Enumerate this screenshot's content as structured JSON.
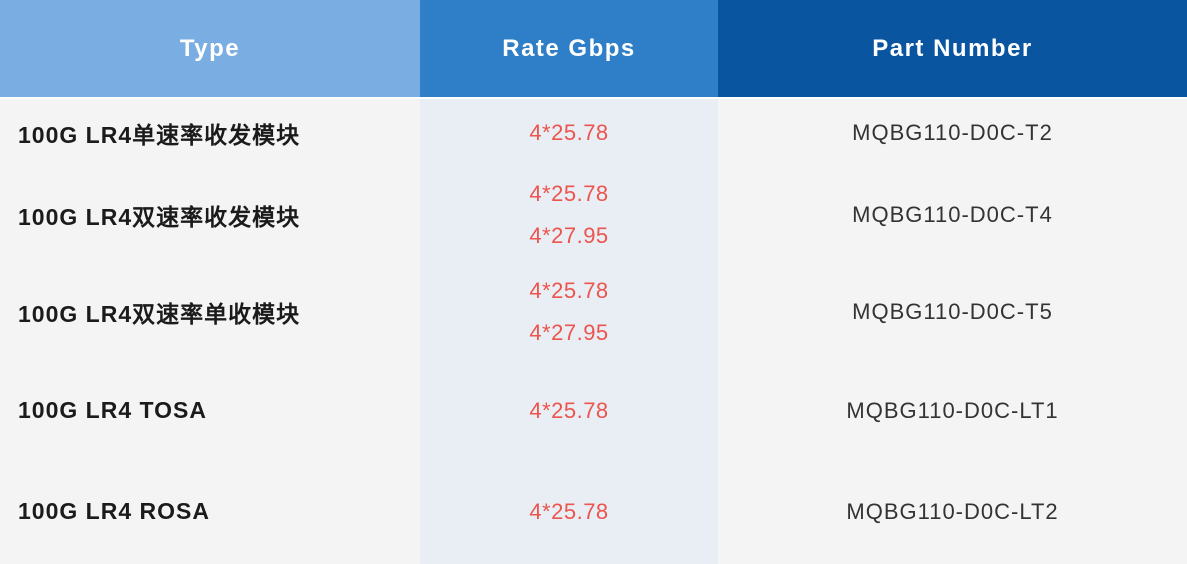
{
  "table": {
    "columns": [
      {
        "label": "Type",
        "header_bg": "#7aade2",
        "body_bg": "#f4f4f5",
        "align": "left"
      },
      {
        "label": "Rate Gbps",
        "header_bg": "#2e7fc7",
        "body_bg": "#e9eef5",
        "align": "center"
      },
      {
        "label": "Part Number",
        "header_bg": "#0a55a0",
        "body_bg": "#f4f4f5",
        "align": "center"
      }
    ],
    "rows": [
      {
        "type": "100G LR4单速率收发模块",
        "rates": [
          "4*25.78"
        ],
        "part_number": "MQBG110-D0C-T2"
      },
      {
        "type": "100G LR4双速率收发模块",
        "rates": [
          "4*25.78",
          "4*27.95"
        ],
        "part_number": "MQBG110-D0C-T4"
      },
      {
        "type": "100G LR4双速率单收模块",
        "rates": [
          "4*25.78",
          "4*27.95"
        ],
        "part_number": "MQBG110-D0C-T5"
      },
      {
        "type": "100G LR4 TOSA",
        "rates": [
          "4*25.78"
        ],
        "part_number": "MQBG110-D0C-LT1"
      },
      {
        "type": "100G LR4 ROSA",
        "rates": [
          "4*25.78"
        ],
        "part_number": "MQBG110-D0C-LT2"
      }
    ],
    "colors": {
      "header_text": "#ffffff",
      "type_text": "#1b1b1b",
      "rate_text": "#ec544e",
      "part_text": "#333333",
      "separator": "#ffffff"
    }
  }
}
